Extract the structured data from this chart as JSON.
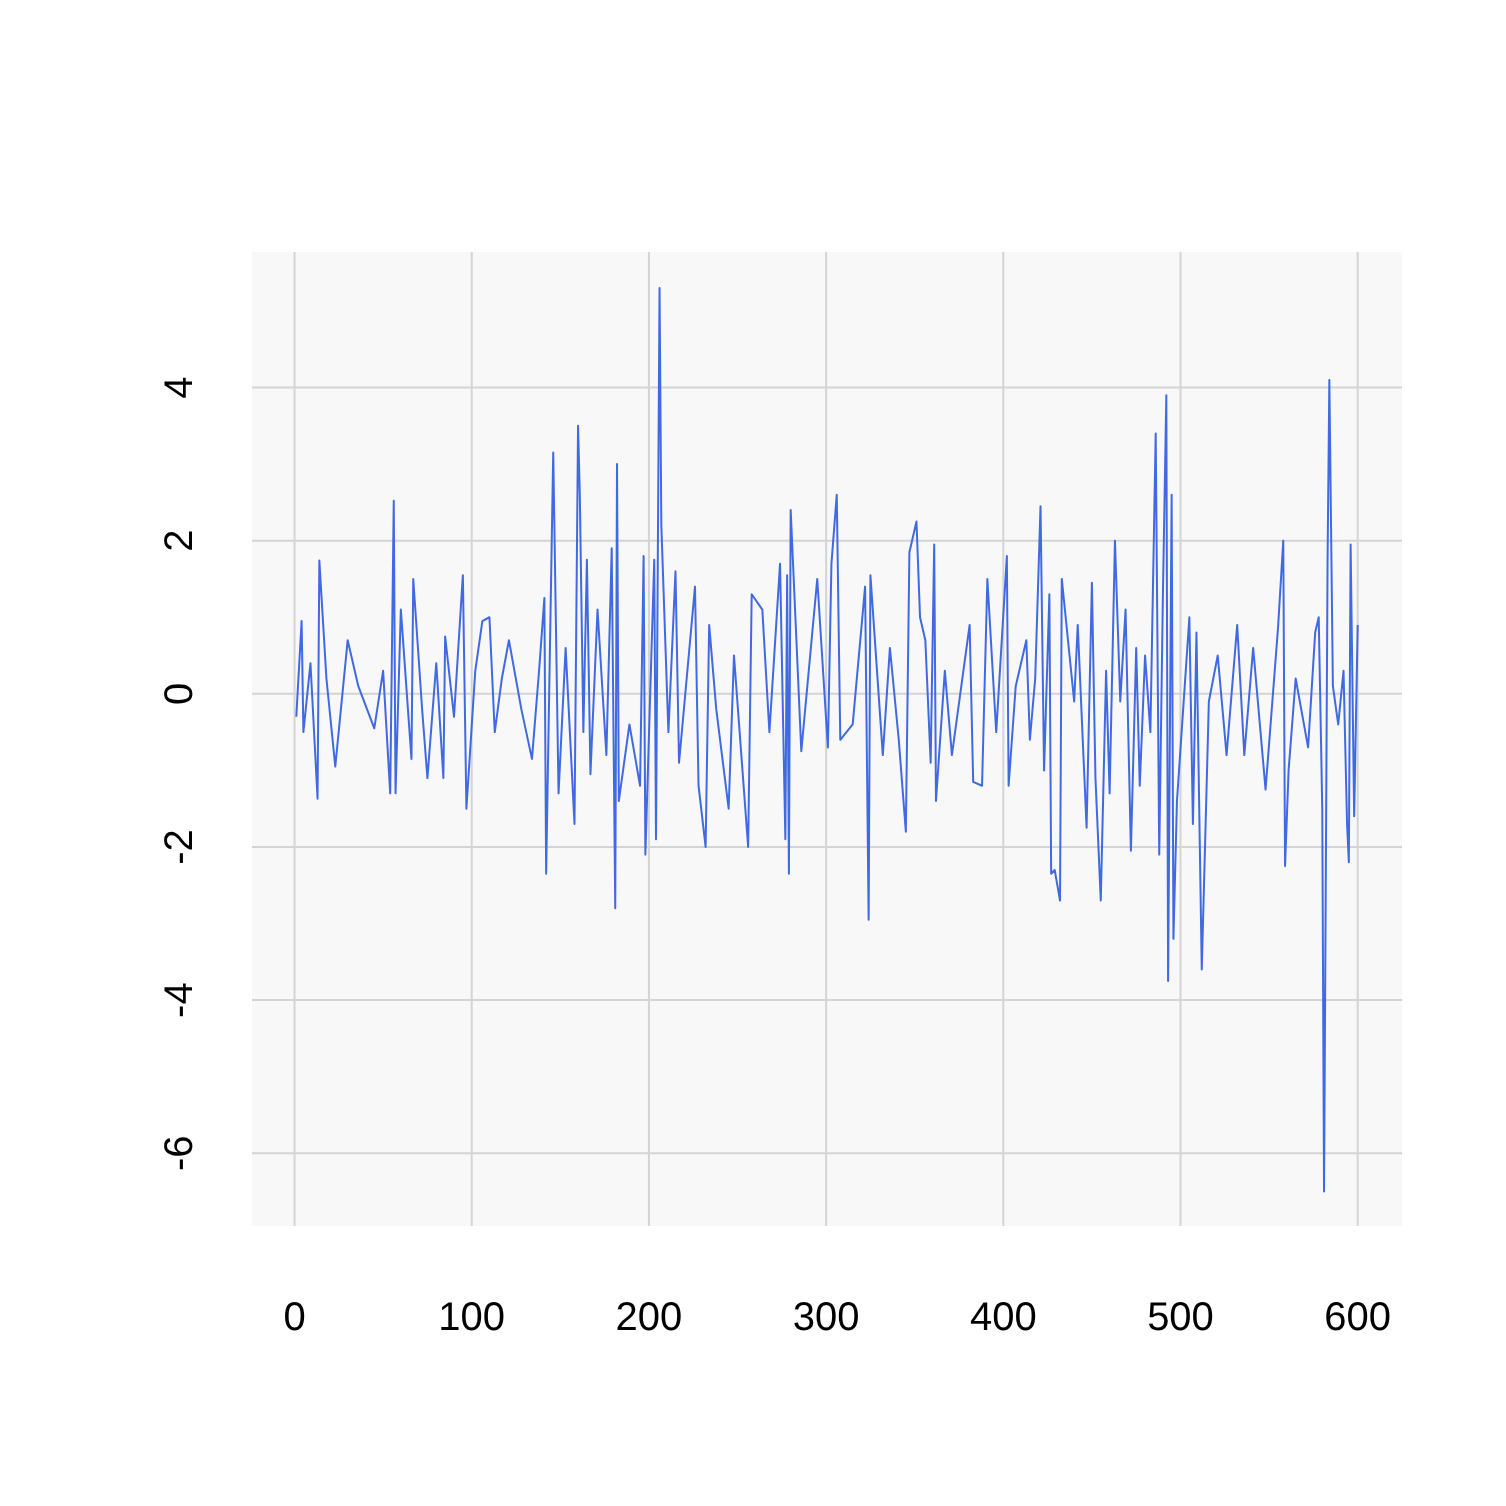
{
  "chart_data": {
    "type": "line",
    "xlim": [
      -24,
      625
    ],
    "ylim": [
      -6.95,
      5.77
    ],
    "xticks": [
      0,
      100,
      200,
      300,
      400,
      500,
      600
    ],
    "yticks": [
      -6,
      -4,
      -2,
      0,
      2,
      4
    ],
    "grid": true,
    "line_style": "solid",
    "series": [
      {
        "color": "#4169e1",
        "x": [
          1,
          4,
          5,
          9,
          13,
          14,
          18,
          23,
          30,
          36,
          45,
          50,
          54,
          56,
          57,
          60,
          66,
          67,
          72,
          75,
          80,
          84,
          85,
          90,
          95,
          97,
          102,
          106,
          110,
          113,
          117,
          121,
          128,
          134,
          138,
          141,
          142,
          146,
          149,
          153,
          158,
          160,
          161,
          163,
          165,
          167,
          171,
          176,
          179,
          181,
          182,
          183,
          189,
          195,
          197,
          198,
          203,
          204,
          206,
          207,
          211,
          215,
          217,
          226,
          228,
          232,
          234,
          238,
          245,
          248,
          256,
          258,
          264,
          268,
          274,
          277,
          278,
          279,
          280,
          286,
          295,
          301,
          303,
          306,
          308,
          315,
          322,
          324,
          325,
          332,
          336,
          341,
          345,
          347,
          351,
          353,
          356,
          359,
          361,
          362,
          367,
          371,
          381,
          383,
          388,
          391,
          396,
          402,
          403,
          407,
          413,
          415,
          418,
          421,
          423,
          426,
          427,
          429,
          432,
          433,
          440,
          442,
          447,
          450,
          452,
          455,
          458,
          460,
          463,
          466,
          469,
          472,
          475,
          477,
          480,
          483,
          486,
          488,
          490,
          492,
          493,
          495,
          496,
          498,
          505,
          507,
          509,
          512,
          516,
          521,
          526,
          532,
          536,
          541,
          548,
          555,
          558,
          559,
          561,
          565,
          572,
          576,
          578,
          580,
          581,
          583,
          584,
          586,
          589,
          592,
          594,
          595,
          596,
          598,
          600
        ],
        "values": [
          -0.3,
          0.95,
          -0.5,
          0.4,
          -1.37,
          1.74,
          0.2,
          -0.95,
          0.7,
          0.1,
          -0.45,
          0.3,
          -1.3,
          2.52,
          -1.3,
          1.1,
          -0.85,
          1.5,
          -0.2,
          -1.1,
          0.4,
          -1.1,
          0.75,
          -0.3,
          1.55,
          -1.5,
          0.3,
          0.95,
          1.0,
          -0.5,
          0.2,
          0.7,
          -0.2,
          -0.85,
          0.3,
          1.25,
          -2.35,
          3.15,
          -1.3,
          0.6,
          -1.7,
          3.5,
          2.6,
          -0.5,
          1.75,
          -1.05,
          1.1,
          -0.8,
          1.9,
          -2.8,
          3.0,
          -1.4,
          -0.4,
          -1.2,
          1.8,
          -2.1,
          1.75,
          -1.9,
          5.3,
          2.2,
          -0.5,
          1.6,
          -0.9,
          1.4,
          -1.2,
          -2.0,
          0.9,
          -0.2,
          -1.5,
          0.5,
          -2.0,
          1.3,
          1.1,
          -0.5,
          1.7,
          -1.9,
          1.55,
          -2.35,
          2.4,
          -0.75,
          1.5,
          -0.7,
          1.7,
          2.6,
          -0.6,
          -0.4,
          1.4,
          -2.95,
          1.55,
          -0.8,
          0.6,
          -0.6,
          -1.8,
          1.85,
          2.25,
          1.0,
          0.7,
          -0.9,
          1.95,
          -1.4,
          0.3,
          -0.8,
          0.9,
          -1.15,
          -1.2,
          1.5,
          -0.5,
          1.8,
          -1.2,
          0.1,
          0.7,
          -0.6,
          0.2,
          2.45,
          -1.0,
          1.3,
          -2.35,
          -2.3,
          -2.7,
          1.5,
          -0.1,
          0.9,
          -1.75,
          1.45,
          -1.1,
          -2.7,
          0.3,
          -1.3,
          2.0,
          -0.1,
          1.1,
          -2.05,
          0.6,
          -1.2,
          0.5,
          -0.5,
          3.4,
          -2.1,
          1.2,
          3.9,
          -3.75,
          2.6,
          -3.2,
          -1.4,
          1.0,
          -1.7,
          0.8,
          -3.6,
          -0.1,
          0.5,
          -0.8,
          0.9,
          -0.8,
          0.6,
          -1.25,
          0.85,
          2.0,
          -2.25,
          -1.0,
          0.2,
          -0.7,
          0.8,
          1.0,
          -1.5,
          -6.5,
          1.75,
          4.1,
          0.1,
          -0.4,
          0.3,
          -1.7,
          -2.2,
          1.95,
          -1.6,
          0.9
        ]
      }
    ]
  }
}
